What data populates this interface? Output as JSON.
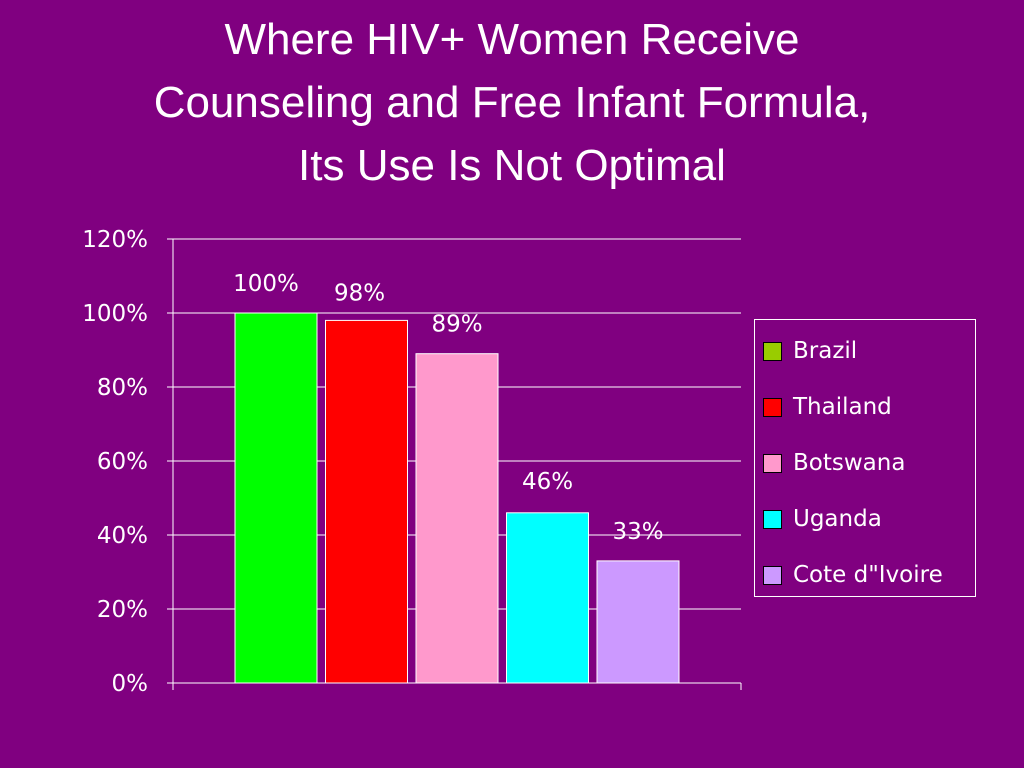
{
  "title_lines": [
    "Where HIV+ Women Receive",
    "Counseling and Free Infant Formula,",
    "Its Use Is Not Optimal"
  ],
  "colors": {
    "background": "#800080",
    "text": "#ffffff",
    "gridline": "#ffffff"
  },
  "chart_data": {
    "type": "bar",
    "categories": [
      "Brazil",
      "Thailand",
      "Botswana",
      "Uganda",
      "Cote d\"Ivoire"
    ],
    "values": [
      100,
      98,
      89,
      46,
      33
    ],
    "data_labels": [
      "100%",
      "98%",
      "89%",
      "46%",
      "33%"
    ],
    "colors": [
      "#00ff00",
      "#ff0000",
      "#ff99cc",
      "#00ffff",
      "#cc99ff"
    ],
    "legend_swatch_colors": [
      "#99cc00",
      "#ff0000",
      "#ff99cc",
      "#00ffff",
      "#cc99ff"
    ],
    "ylim": [
      0,
      120
    ],
    "yticks": [
      0,
      20,
      40,
      60,
      80,
      100,
      120
    ],
    "ytick_labels": [
      "0%",
      "20%",
      "40%",
      "60%",
      "80%",
      "100%",
      "120%"
    ],
    "grid": true,
    "legend_position": "right",
    "title": "",
    "xlabel": "",
    "ylabel": ""
  }
}
